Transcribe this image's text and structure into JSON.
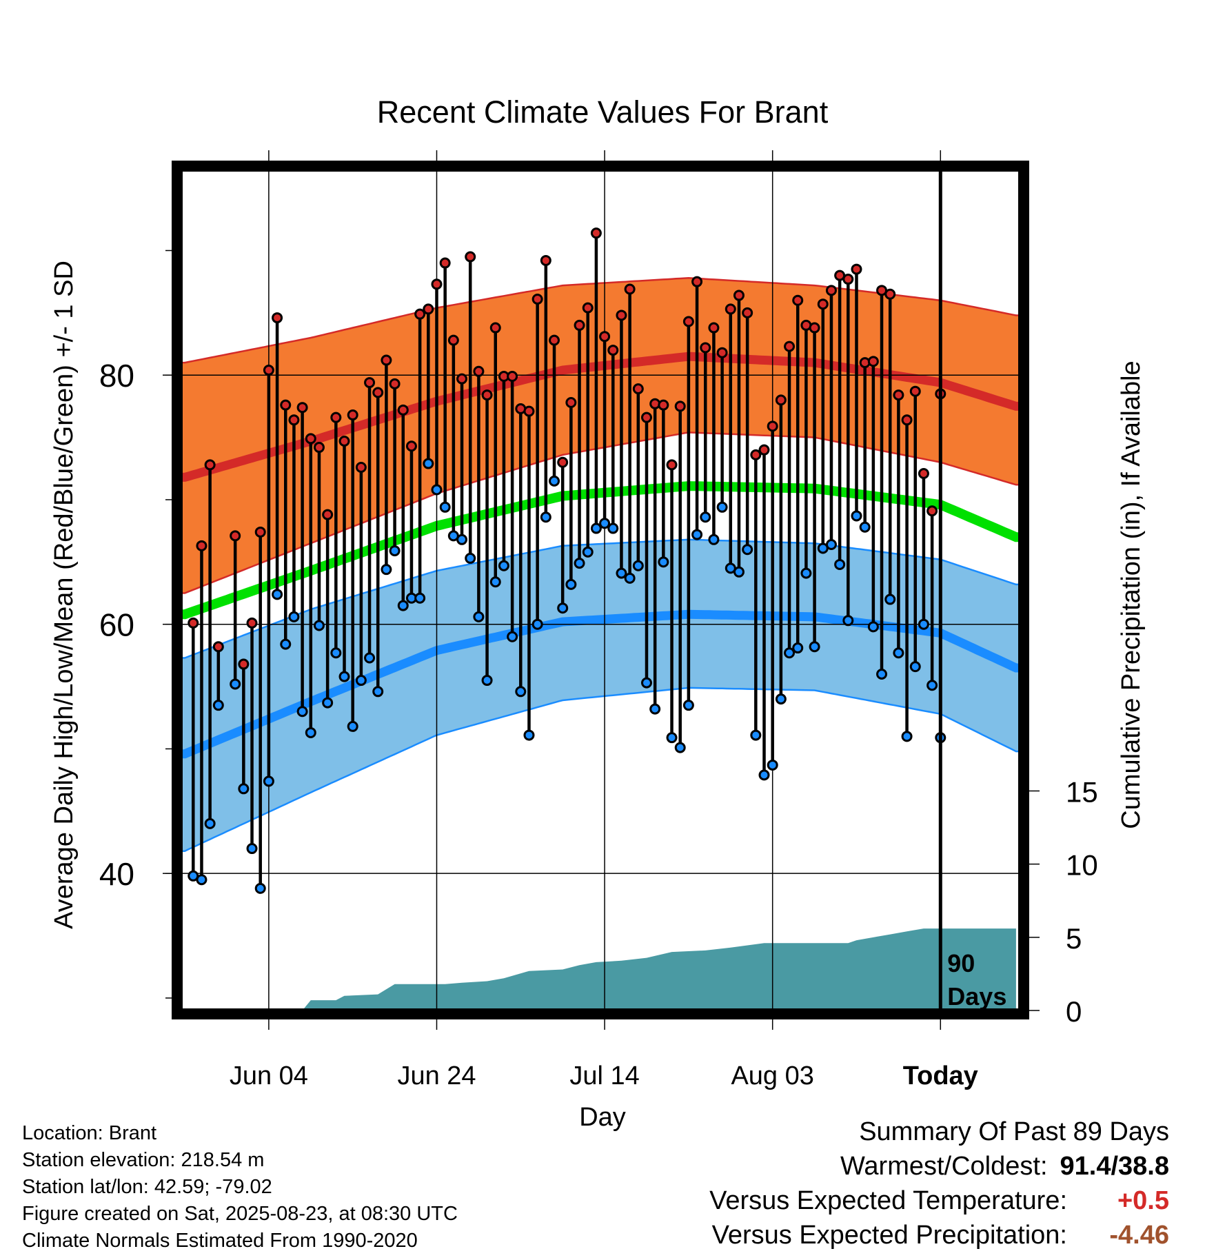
{
  "chart_data": {
    "type": "line",
    "title": "Recent Climate Values For Brant",
    "xlabel": "Day",
    "ylabel": "Average Daily High/Low/Mean (Red/Blue/Green) +/- 1 SD",
    "y2label": "Cumulative Precipitation (in), If Available",
    "x_tick_labels": [
      "Jun 04",
      "Jun 24",
      "Jul 14",
      "Aug 03",
      "Today"
    ],
    "y_ticks": [
      40,
      60,
      80
    ],
    "y_range": [
      29,
      96.5
    ],
    "y2_ticks": [
      0,
      5,
      10,
      15
    ],
    "day_range": [
      -90.5,
      9.5
    ],
    "x_tick_days": [
      -80,
      -60,
      -40,
      -20,
      0
    ],
    "today_marker_label": "90\nDays",
    "normals": {
      "high_mean": [
        {
          "day": -90,
          "value": 71.8
        },
        {
          "day": -75,
          "value": 74.7
        },
        {
          "day": -60,
          "value": 77.9
        },
        {
          "day": -45,
          "value": 80.4
        },
        {
          "day": -30,
          "value": 81.5
        },
        {
          "day": -15,
          "value": 81.0
        },
        {
          "day": 0,
          "value": 79.4
        },
        {
          "day": 9,
          "value": 77.5
        }
      ],
      "high_sd_upper": [
        {
          "day": -90,
          "value": 81.0
        },
        {
          "day": -75,
          "value": 83.0
        },
        {
          "day": -60,
          "value": 85.4
        },
        {
          "day": -45,
          "value": 87.2
        },
        {
          "day": -30,
          "value": 87.8
        },
        {
          "day": -15,
          "value": 87.2
        },
        {
          "day": 0,
          "value": 86.0
        },
        {
          "day": 9,
          "value": 84.8
        }
      ],
      "high_sd_lower": [
        {
          "day": -90,
          "value": 62.5
        },
        {
          "day": -75,
          "value": 66.5
        },
        {
          "day": -60,
          "value": 70.5
        },
        {
          "day": -45,
          "value": 73.6
        },
        {
          "day": -30,
          "value": 75.4
        },
        {
          "day": -15,
          "value": 75.0
        },
        {
          "day": 0,
          "value": 73.0
        },
        {
          "day": 9,
          "value": 71.2
        }
      ],
      "mean": [
        {
          "day": -90,
          "value": 60.8
        },
        {
          "day": -75,
          "value": 64.3
        },
        {
          "day": -60,
          "value": 67.9
        },
        {
          "day": -45,
          "value": 70.3
        },
        {
          "day": -30,
          "value": 71.1
        },
        {
          "day": -15,
          "value": 70.9
        },
        {
          "day": 0,
          "value": 69.6
        },
        {
          "day": 9,
          "value": 67.0
        }
      ],
      "low_mean": [
        {
          "day": -90,
          "value": 49.6
        },
        {
          "day": -75,
          "value": 53.8
        },
        {
          "day": -60,
          "value": 57.9
        },
        {
          "day": -45,
          "value": 60.2
        },
        {
          "day": -30,
          "value": 60.8
        },
        {
          "day": -15,
          "value": 60.6
        },
        {
          "day": 0,
          "value": 59.3
        },
        {
          "day": 9,
          "value": 56.5
        }
      ],
      "low_sd_upper": [
        {
          "day": -90,
          "value": 57.3
        },
        {
          "day": -75,
          "value": 61.2
        },
        {
          "day": -60,
          "value": 64.3
        },
        {
          "day": -45,
          "value": 66.3
        },
        {
          "day": -30,
          "value": 66.8
        },
        {
          "day": -15,
          "value": 66.5
        },
        {
          "day": 0,
          "value": 65.2
        },
        {
          "day": 9,
          "value": 63.2
        }
      ],
      "low_sd_lower": [
        {
          "day": -90,
          "value": 41.8
        },
        {
          "day": -75,
          "value": 46.5
        },
        {
          "day": -60,
          "value": 51.1
        },
        {
          "day": -45,
          "value": 53.9
        },
        {
          "day": -30,
          "value": 54.9
        },
        {
          "day": -15,
          "value": 54.7
        },
        {
          "day": 0,
          "value": 52.8
        },
        {
          "day": 9,
          "value": 49.8
        }
      ]
    },
    "daily": [
      {
        "day": -89,
        "high": 60.1,
        "low": 39.8
      },
      {
        "day": -88,
        "high": 66.3,
        "low": 39.5
      },
      {
        "day": -87,
        "high": 72.8,
        "low": 44.0
      },
      {
        "day": -86,
        "high": 58.2,
        "low": 53.5
      },
      {
        "day": -84,
        "high": 67.1,
        "low": 55.2
      },
      {
        "day": -83,
        "high": 56.8,
        "low": 46.8
      },
      {
        "day": -82,
        "high": 60.1,
        "low": 42.0
      },
      {
        "day": -81,
        "high": 67.4,
        "low": 38.8
      },
      {
        "day": -80,
        "high": 80.4,
        "low": 47.4
      },
      {
        "day": -79,
        "high": 84.6,
        "low": 62.4
      },
      {
        "day": -78,
        "high": 77.6,
        "low": 58.4
      },
      {
        "day": -77,
        "high": 76.4,
        "low": 60.6
      },
      {
        "day": -76,
        "high": 77.4,
        "low": 53.0
      },
      {
        "day": -75,
        "high": 74.9,
        "low": 51.3
      },
      {
        "day": -74,
        "high": 74.2,
        "low": 59.9
      },
      {
        "day": -73,
        "high": 68.8,
        "low": 53.7
      },
      {
        "day": -72,
        "high": 76.6,
        "low": 57.7
      },
      {
        "day": -71,
        "high": 74.7,
        "low": 55.8
      },
      {
        "day": -70,
        "high": 76.8,
        "low": 51.8
      },
      {
        "day": -69,
        "high": 72.6,
        "low": 55.5
      },
      {
        "day": -68,
        "high": 79.4,
        "low": 57.3
      },
      {
        "day": -67,
        "high": 78.6,
        "low": 54.6
      },
      {
        "day": -66,
        "high": 81.2,
        "low": 64.4
      },
      {
        "day": -65,
        "high": 79.3,
        "low": 65.9
      },
      {
        "day": -64,
        "high": 77.2,
        "low": 61.5
      },
      {
        "day": -63,
        "high": 74.3,
        "low": 62.1
      },
      {
        "day": -62,
        "high": 84.9,
        "low": 62.1
      },
      {
        "day": -61,
        "high": 85.3,
        "low": 72.9
      },
      {
        "day": -60,
        "high": 87.3,
        "low": 70.8
      },
      {
        "day": -59,
        "high": 89.0,
        "low": 69.4
      },
      {
        "day": -58,
        "high": 82.8,
        "low": 67.1
      },
      {
        "day": -57,
        "high": 79.7,
        "low": 66.8
      },
      {
        "day": -56,
        "high": 89.5,
        "low": 65.3
      },
      {
        "day": -55,
        "high": 80.3,
        "low": 60.6
      },
      {
        "day": -54,
        "high": 78.4,
        "low": 55.5
      },
      {
        "day": -53,
        "high": 83.8,
        "low": 63.4
      },
      {
        "day": -52,
        "high": 79.9,
        "low": 64.7
      },
      {
        "day": -51,
        "high": 79.9,
        "low": 59.0
      },
      {
        "day": -50,
        "high": 77.3,
        "low": 54.6
      },
      {
        "day": -49,
        "high": 77.1,
        "low": 51.1
      },
      {
        "day": -48,
        "high": 86.1,
        "low": 60.0
      },
      {
        "day": -47,
        "high": 89.2,
        "low": 68.6
      },
      {
        "day": -46,
        "high": 82.8,
        "low": 71.5
      },
      {
        "day": -45,
        "high": 73.0,
        "low": 61.3
      },
      {
        "day": -44,
        "high": 77.8,
        "low": 63.2
      },
      {
        "day": -43,
        "high": 84.0,
        "low": 64.9
      },
      {
        "day": -42,
        "high": 85.4,
        "low": 65.8
      },
      {
        "day": -41,
        "high": 91.4,
        "low": 67.7
      },
      {
        "day": -40,
        "high": 83.1,
        "low": 68.1
      },
      {
        "day": -39,
        "high": 82.0,
        "low": 67.7
      },
      {
        "day": -38,
        "high": 84.8,
        "low": 64.1
      },
      {
        "day": -37,
        "high": 86.9,
        "low": 63.7
      },
      {
        "day": -36,
        "high": 78.9,
        "low": 64.7
      },
      {
        "day": -35,
        "high": 76.6,
        "low": 55.3
      },
      {
        "day": -34,
        "high": 77.7,
        "low": 53.2
      },
      {
        "day": -33,
        "high": 77.6,
        "low": 65.0
      },
      {
        "day": -32,
        "high": 72.8,
        "low": 50.9
      },
      {
        "day": -31,
        "high": 77.5,
        "low": 50.1
      },
      {
        "day": -30,
        "high": 84.3,
        "low": 53.5
      },
      {
        "day": -29,
        "high": 87.5,
        "low": 67.2
      },
      {
        "day": -28,
        "high": 82.2,
        "low": 68.6
      },
      {
        "day": -27,
        "high": 83.8,
        "low": 66.8
      },
      {
        "day": -26,
        "high": 81.8,
        "low": 69.4
      },
      {
        "day": -25,
        "high": 85.3,
        "low": 64.5
      },
      {
        "day": -24,
        "high": 86.4,
        "low": 64.2
      },
      {
        "day": -23,
        "high": 85.0,
        "low": 66.0
      },
      {
        "day": -22,
        "high": 73.6,
        "low": 51.1
      },
      {
        "day": -21,
        "high": 74.0,
        "low": 47.9
      },
      {
        "day": -20,
        "high": 75.9,
        "low": 48.7
      },
      {
        "day": -19,
        "high": 78.0,
        "low": 54.0
      },
      {
        "day": -18,
        "high": 82.3,
        "low": 57.7
      },
      {
        "day": -17,
        "high": 86.0,
        "low": 58.1
      },
      {
        "day": -16,
        "high": 84.0,
        "low": 64.1
      },
      {
        "day": -15,
        "high": 83.8,
        "low": 58.2
      },
      {
        "day": -14,
        "high": 85.7,
        "low": 66.1
      },
      {
        "day": -13,
        "high": 86.8,
        "low": 66.4
      },
      {
        "day": -12,
        "high": 88.0,
        "low": 64.8
      },
      {
        "day": -11,
        "high": 87.7,
        "low": 60.3
      },
      {
        "day": -10,
        "high": 88.5,
        "low": 68.7
      },
      {
        "day": -9,
        "high": 81.0,
        "low": 67.8
      },
      {
        "day": -8,
        "high": 81.1,
        "low": 59.8
      },
      {
        "day": -7,
        "high": 86.8,
        "low": 56.0
      },
      {
        "day": -6,
        "high": 86.5,
        "low": 62.0
      },
      {
        "day": -5,
        "high": 78.4,
        "low": 57.7
      },
      {
        "day": -4,
        "high": 76.4,
        "low": 51.0
      },
      {
        "day": -3,
        "high": 78.7,
        "low": 56.6
      },
      {
        "day": -2,
        "high": 72.1,
        "low": 60.0
      },
      {
        "day": -1,
        "high": 69.1,
        "low": 55.1
      },
      {
        "day": 0,
        "high": 78.5,
        "low": 50.9
      }
    ],
    "cumulative_precip": [
      {
        "day": -90,
        "value": 0.0
      },
      {
        "day": -76,
        "value": 0.0
      },
      {
        "day": -75,
        "value": 0.7
      },
      {
        "day": -72,
        "value": 0.7
      },
      {
        "day": -71,
        "value": 1.0
      },
      {
        "day": -67,
        "value": 1.1
      },
      {
        "day": -65,
        "value": 1.8
      },
      {
        "day": -59,
        "value": 1.8
      },
      {
        "day": -57,
        "value": 1.9
      },
      {
        "day": -54,
        "value": 2.0
      },
      {
        "day": -52,
        "value": 2.2
      },
      {
        "day": -49,
        "value": 2.7
      },
      {
        "day": -45,
        "value": 2.8
      },
      {
        "day": -43,
        "value": 3.1
      },
      {
        "day": -41,
        "value": 3.3
      },
      {
        "day": -38,
        "value": 3.4
      },
      {
        "day": -35,
        "value": 3.6
      },
      {
        "day": -32,
        "value": 4.0
      },
      {
        "day": -28,
        "value": 4.1
      },
      {
        "day": -25,
        "value": 4.3
      },
      {
        "day": -21,
        "value": 4.6
      },
      {
        "day": -11,
        "value": 4.6
      },
      {
        "day": -10,
        "value": 4.8
      },
      {
        "day": -6,
        "value": 5.2
      },
      {
        "day": -4,
        "value": 5.4
      },
      {
        "day": -2,
        "value": 5.6
      },
      {
        "day": 9,
        "value": 5.6
      }
    ],
    "precip_y2_range": [
      0,
      17
    ],
    "colors": {
      "high_band": "#f47a30",
      "high_mean": "#d42a28",
      "band_edge_red": "#d42a28",
      "mean": "#00e000",
      "low_band": "#7fbfe8",
      "low_mean": "#1a8cff",
      "band_edge_blue": "#1a8cff",
      "precip": "#4a9aa3",
      "high_point": "#d42a28",
      "low_point": "#1a8cff"
    }
  },
  "footer": {
    "location": "Location: Brant",
    "elevation": "Station elevation: 218.54 m",
    "latlon": "Station lat/lon: 42.59; -79.02",
    "created": "Figure created on Sat, 2025-08-23, at 08:30 UTC",
    "normals": "Climate Normals Estimated From 1990-2020"
  },
  "summary": {
    "heading": "Summary Of Past 89 Days",
    "warm_cold_label": "Warmest/Coldest:",
    "warm_cold_value": "91.4/38.8",
    "temp_label": "Versus Expected Temperature:",
    "temp_value": "+0.5",
    "temp_color": "#d42a28",
    "precip_label": "Versus Expected Precipitation:",
    "precip_value": "-4.46",
    "precip_color": "#a0522d"
  }
}
